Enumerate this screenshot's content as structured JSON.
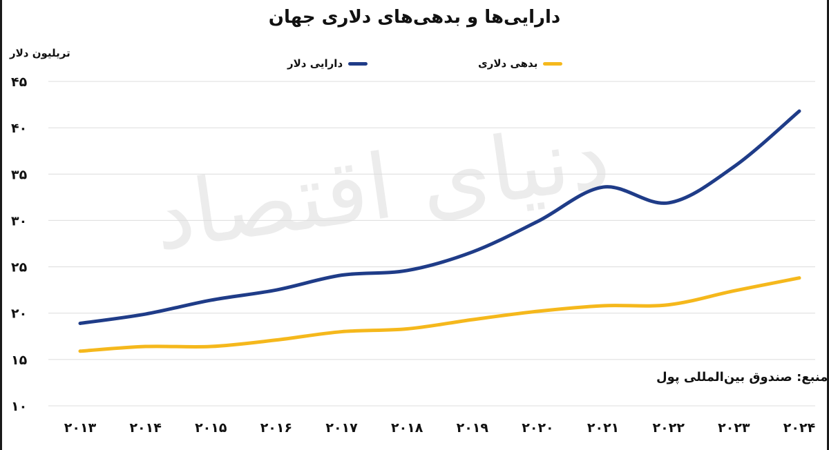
{
  "chart_data": {
    "type": "line",
    "title": "دارایی‌ها و بدهی‌های دلاری جهان",
    "ylabel": "تریلیون دلار",
    "xlabel": "",
    "x": [
      "۲۰۱۳",
      "۲۰۱۴",
      "۲۰۱۵",
      "۲۰۱۶",
      "۲۰۱۷",
      "۲۰۱۸",
      "۲۰۱۹",
      "۲۰۲۰",
      "۲۰۲۱",
      "۲۰۲۲",
      "۲۰۲۳",
      "۲۰۲۴"
    ],
    "yticks": [
      "۱۰",
      "۱۵",
      "۲۰",
      "۲۵",
      "۳۰",
      "۳۵",
      "۴۰",
      "۴۵"
    ],
    "ylim": [
      10,
      45
    ],
    "grid": true,
    "legend_position": "top-center",
    "series": [
      {
        "name": "دارایی دلار",
        "color": "#1f3c88",
        "values": [
          18.9,
          19.9,
          21.4,
          22.5,
          24.1,
          24.6,
          26.6,
          29.9,
          33.6,
          31.9,
          35.8,
          41.8
        ]
      },
      {
        "name": "بدهی دلاری",
        "color": "#f5b81c",
        "values": [
          15.9,
          16.4,
          16.4,
          17.1,
          18.0,
          18.3,
          19.3,
          20.2,
          20.8,
          20.9,
          22.4,
          23.8
        ]
      }
    ],
    "source": "منبع: صندوق بین‌المللی پول",
    "watermark": "دنیای اقتصاد"
  }
}
